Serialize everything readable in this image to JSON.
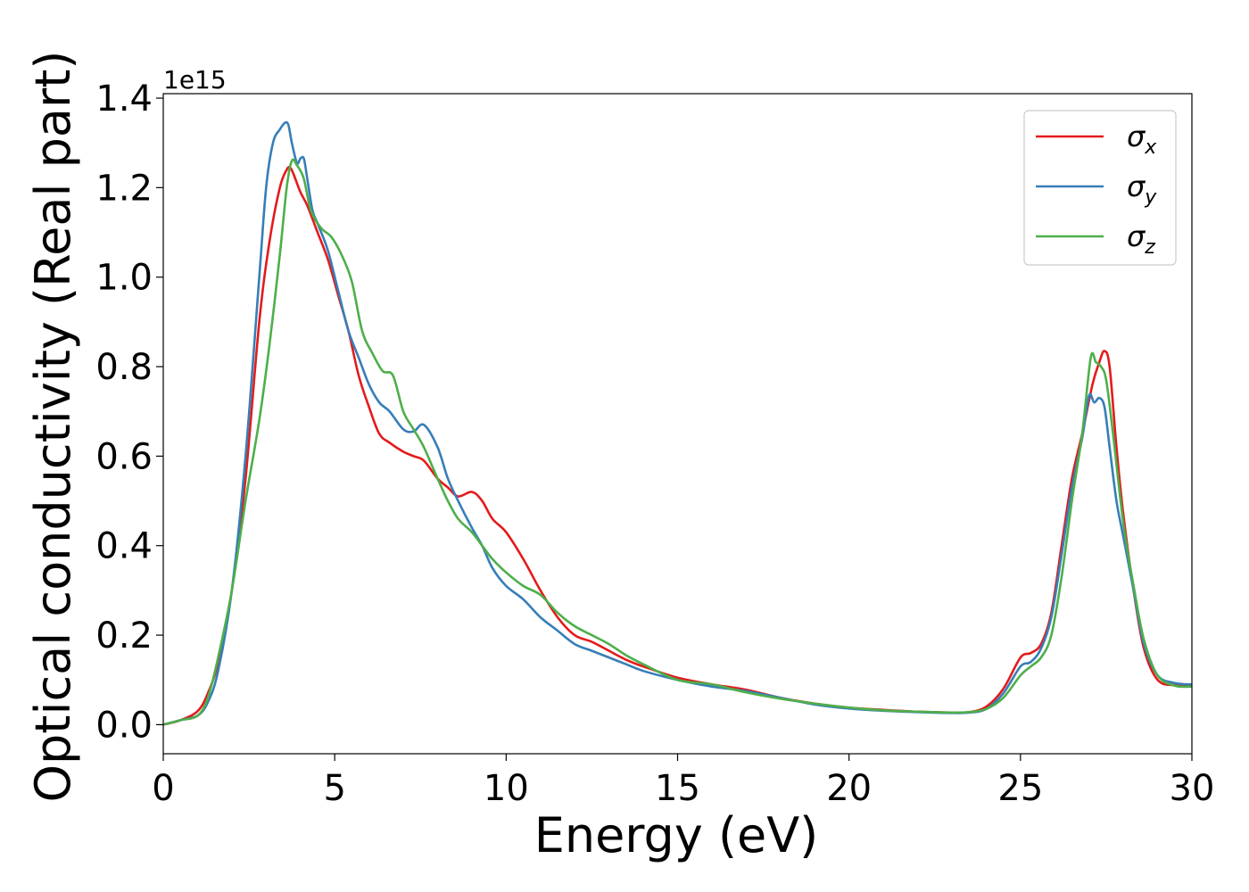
{
  "chart_data": {
    "type": "line",
    "title": "",
    "xlabel": "Energy (eV)",
    "ylabel": "Optical conductivity (Real part)",
    "y_offset_label": "1e15",
    "xlim": [
      0,
      30
    ],
    "ylim": [
      -0.065,
      1.41
    ],
    "xticks": [
      0,
      5,
      10,
      15,
      20,
      25,
      30
    ],
    "xtick_labels": [
      "0",
      "5",
      "10",
      "15",
      "20",
      "25",
      "30"
    ],
    "yticks": [
      0.0,
      0.2,
      0.4,
      0.6,
      0.8,
      1.0,
      1.2,
      1.4
    ],
    "ytick_labels": [
      "0.0",
      "0.2",
      "0.4",
      "0.6",
      "0.8",
      "1.0",
      "1.2",
      "1.4"
    ],
    "grid": false,
    "legend_position": "top-right",
    "series": [
      {
        "name": "σx",
        "symbol": "σ",
        "subscript": "x",
        "color": "#e41a1c",
        "x": [
          0,
          0.5,
          1,
          1.3,
          1.6,
          2,
          2.4,
          2.8,
          3.1,
          3.4,
          3.6,
          3.7,
          3.8,
          4,
          4.2,
          4.5,
          4.8,
          5.1,
          5.4,
          5.7,
          6,
          6.3,
          6.6,
          7,
          7.3,
          7.6,
          8,
          8.3,
          8.6,
          9,
          9.3,
          9.6,
          10,
          10.5,
          11,
          11.5,
          12,
          12.5,
          13,
          13.5,
          14,
          15,
          16,
          17,
          18,
          19,
          20,
          21,
          22,
          23,
          23.5,
          24,
          24.5,
          25,
          25.3,
          25.6,
          25.9,
          26.2,
          26.5,
          26.8,
          27.1,
          27.3,
          27.45,
          27.6,
          27.8,
          28,
          28.3,
          28.6,
          29,
          29.5,
          30
        ],
        "y": [
          0,
          0.01,
          0.03,
          0.07,
          0.14,
          0.3,
          0.55,
          0.9,
          1.08,
          1.2,
          1.24,
          1.245,
          1.23,
          1.19,
          1.16,
          1.1,
          1.04,
          0.96,
          0.88,
          0.78,
          0.71,
          0.65,
          0.63,
          0.61,
          0.6,
          0.59,
          0.55,
          0.53,
          0.51,
          0.52,
          0.5,
          0.46,
          0.43,
          0.37,
          0.3,
          0.24,
          0.2,
          0.185,
          0.165,
          0.145,
          0.13,
          0.105,
          0.09,
          0.078,
          0.06,
          0.047,
          0.038,
          0.033,
          0.029,
          0.027,
          0.028,
          0.04,
          0.08,
          0.15,
          0.16,
          0.18,
          0.25,
          0.4,
          0.55,
          0.65,
          0.76,
          0.81,
          0.835,
          0.8,
          0.62,
          0.47,
          0.3,
          0.17,
          0.1,
          0.088,
          0.088
        ]
      },
      {
        "name": "σy",
        "symbol": "σ",
        "subscript": "y",
        "color": "#377eb8",
        "x": [
          0,
          0.5,
          1,
          1.3,
          1.6,
          2,
          2.4,
          2.8,
          3,
          3.2,
          3.4,
          3.55,
          3.65,
          3.75,
          3.9,
          4,
          4.1,
          4.2,
          4.35,
          4.5,
          4.8,
          5.1,
          5.4,
          5.7,
          6,
          6.3,
          6.6,
          7,
          7.3,
          7.6,
          8,
          8.3,
          8.6,
          9,
          9.3,
          9.6,
          10,
          10.5,
          11,
          11.5,
          12,
          12.5,
          13,
          13.5,
          14,
          15,
          16,
          17,
          18,
          19,
          20,
          21,
          22,
          23,
          23.5,
          24,
          24.5,
          25,
          25.3,
          25.6,
          25.9,
          26.2,
          26.5,
          26.8,
          27,
          27.15,
          27.3,
          27.45,
          27.6,
          27.8,
          28,
          28.3,
          28.6,
          29,
          29.5,
          30
        ],
        "y": [
          0,
          0.01,
          0.02,
          0.05,
          0.12,
          0.3,
          0.6,
          1.0,
          1.2,
          1.3,
          1.33,
          1.345,
          1.34,
          1.3,
          1.255,
          1.265,
          1.265,
          1.22,
          1.15,
          1.12,
          1.06,
          0.97,
          0.88,
          0.82,
          0.76,
          0.72,
          0.7,
          0.66,
          0.655,
          0.67,
          0.62,
          0.55,
          0.5,
          0.44,
          0.4,
          0.35,
          0.31,
          0.28,
          0.24,
          0.21,
          0.18,
          0.165,
          0.15,
          0.135,
          0.12,
          0.1,
          0.085,
          0.075,
          0.06,
          0.045,
          0.036,
          0.031,
          0.028,
          0.026,
          0.027,
          0.035,
          0.07,
          0.13,
          0.14,
          0.17,
          0.24,
          0.38,
          0.53,
          0.64,
          0.735,
          0.72,
          0.73,
          0.71,
          0.62,
          0.5,
          0.42,
          0.3,
          0.18,
          0.11,
          0.093,
          0.09
        ]
      },
      {
        "name": "σz",
        "symbol": "σ",
        "subscript": "z",
        "color": "#4daf4a",
        "x": [
          0,
          0.5,
          1,
          1.3,
          1.6,
          2,
          2.4,
          2.8,
          3.1,
          3.4,
          3.6,
          3.75,
          3.9,
          4.1,
          4.3,
          4.6,
          4.9,
          5.2,
          5.5,
          5.8,
          6.1,
          6.4,
          6.7,
          7,
          7.3,
          7.6,
          8,
          8.3,
          8.6,
          9,
          9.3,
          9.6,
          10,
          10.5,
          11,
          11.5,
          12,
          12.5,
          13,
          13.5,
          14,
          15,
          16,
          17,
          18,
          19,
          20,
          21,
          22,
          23,
          23.5,
          24,
          24.5,
          25,
          25.3,
          25.6,
          25.9,
          26.2,
          26.5,
          26.8,
          27.05,
          27.2,
          27.35,
          27.5,
          27.7,
          28,
          28.3,
          28.6,
          29,
          29.5,
          30
        ],
        "y": [
          0,
          0.01,
          0.02,
          0.06,
          0.15,
          0.3,
          0.5,
          0.68,
          0.85,
          1.05,
          1.2,
          1.26,
          1.25,
          1.22,
          1.15,
          1.11,
          1.09,
          1.05,
          0.99,
          0.88,
          0.83,
          0.79,
          0.78,
          0.7,
          0.66,
          0.62,
          0.55,
          0.5,
          0.46,
          0.43,
          0.4,
          0.37,
          0.34,
          0.31,
          0.29,
          0.25,
          0.22,
          0.2,
          0.18,
          0.155,
          0.135,
          0.1,
          0.09,
          0.072,
          0.058,
          0.047,
          0.038,
          0.032,
          0.029,
          0.027,
          0.028,
          0.035,
          0.06,
          0.11,
          0.13,
          0.15,
          0.2,
          0.33,
          0.5,
          0.65,
          0.82,
          0.81,
          0.8,
          0.77,
          0.65,
          0.45,
          0.31,
          0.19,
          0.11,
          0.087,
          0.085
        ]
      }
    ]
  }
}
